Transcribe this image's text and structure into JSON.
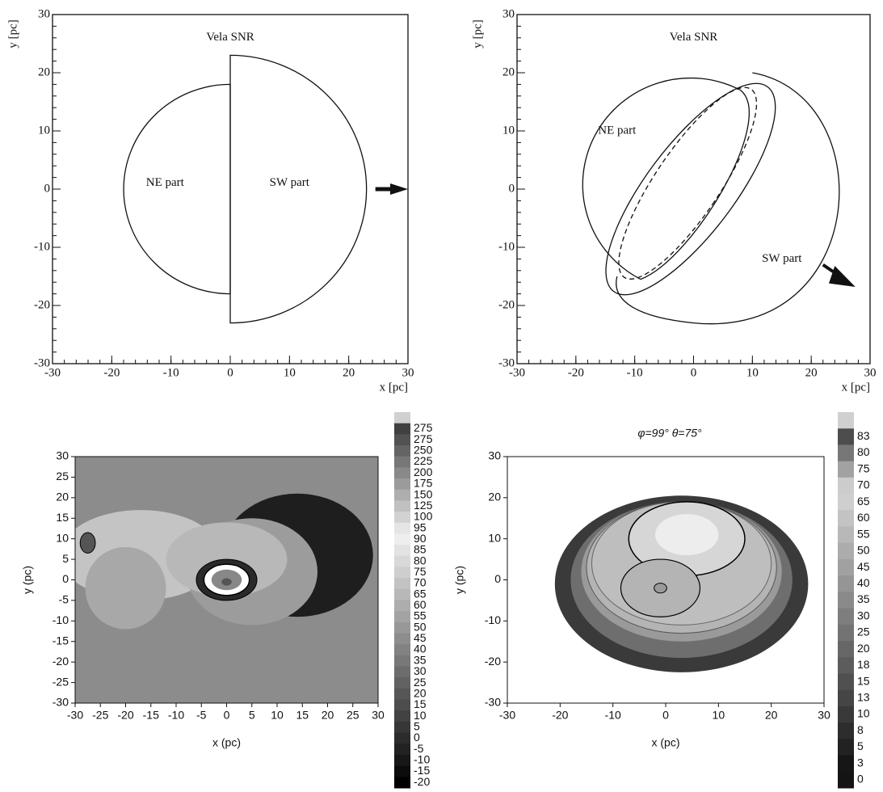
{
  "chart_data": [
    {
      "type": "schematic",
      "annotations": [
        "Vela SNR",
        "NE part",
        "SW part"
      ],
      "x_label": "x  [pc]",
      "y_label": "y  [pc]",
      "xlim": [
        -30,
        30
      ],
      "ylim": [
        -30,
        30
      ],
      "xticks": [
        -30,
        -20,
        -10,
        0,
        10,
        20,
        30
      ],
      "yticks": [
        -30,
        -20,
        -10,
        0,
        10,
        20,
        30
      ]
    },
    {
      "type": "schematic",
      "annotations": [
        "Vela SNR",
        "NE part",
        "SW part"
      ],
      "x_label": "x  [pc]",
      "y_label": "y  [pc]",
      "xlim": [
        -30,
        30
      ],
      "ylim": [
        -30,
        30
      ],
      "xticks": [
        -30,
        -20,
        -10,
        0,
        10,
        20,
        30
      ],
      "yticks": [
        -30,
        -20,
        -10,
        0,
        10,
        20,
        30
      ]
    },
    {
      "type": "contour",
      "x_label": "x (pc)",
      "y_label": "y (pc)",
      "xlim": [
        -30,
        30
      ],
      "ylim": [
        -30,
        30
      ],
      "xticks": [
        -30,
        -25,
        -20,
        -15,
        -10,
        -5,
        0,
        5,
        10,
        15,
        20,
        25,
        30
      ],
      "yticks": [
        30,
        25,
        20,
        15,
        10,
        5,
        0,
        -5,
        -10,
        -15,
        -20,
        -25,
        -30
      ],
      "colorbar_levels": [
        275,
        275,
        250,
        225,
        200,
        175,
        150,
        125,
        100,
        95,
        90,
        85,
        80,
        75,
        70,
        65,
        60,
        55,
        50,
        45,
        40,
        35,
        30,
        25,
        20,
        15,
        10,
        5,
        0,
        -5,
        -10,
        -15,
        -20
      ]
    },
    {
      "type": "contour",
      "title": "φ=99° θ=75°",
      "x_label": "x (pc)",
      "y_label": "y (pc)",
      "xlim": [
        -30,
        30
      ],
      "ylim": [
        -30,
        30
      ],
      "xticks": [
        -30,
        -20,
        -10,
        0,
        10,
        20,
        30
      ],
      "yticks": [
        30,
        20,
        10,
        0,
        -10,
        -20,
        -30
      ],
      "colorbar_levels": [
        83,
        80,
        75,
        70,
        65,
        60,
        55,
        50,
        45,
        40,
        35,
        30,
        25,
        20,
        18,
        15,
        13,
        10,
        8,
        5,
        3,
        0
      ]
    }
  ]
}
